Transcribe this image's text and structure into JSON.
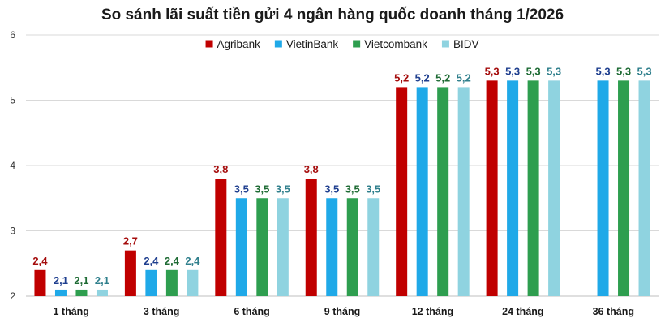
{
  "chart_data": {
    "type": "bar",
    "title": "So sánh lãi suất tiền gửi 4 ngân hàng quốc doanh tháng 1/2026",
    "categories": [
      "1 tháng",
      "3 tháng",
      "6 tháng",
      "9 tháng",
      "12 tháng",
      "24 tháng",
      "36 tháng"
    ],
    "series": [
      {
        "name": "Agribank",
        "color": "#c00000",
        "label_color": "#a50d0d",
        "values": [
          2.4,
          2.7,
          3.8,
          3.8,
          5.2,
          5.3,
          null
        ],
        "labels": [
          "2,4",
          "2,7",
          "3,8",
          "3,8",
          "5,2",
          "5,3",
          ""
        ]
      },
      {
        "name": "VietinBank",
        "color": "#1fa9e8",
        "label_color": "#1f3f8f",
        "values": [
          2.1,
          2.4,
          3.5,
          3.5,
          5.2,
          5.3,
          5.3
        ],
        "labels": [
          "2,1",
          "2,4",
          "3,5",
          "3,5",
          "5,2",
          "5,3",
          "5,3"
        ]
      },
      {
        "name": "Vietcombank",
        "color": "#2e9e4f",
        "label_color": "#1e6b34",
        "values": [
          2.1,
          2.4,
          3.5,
          3.5,
          5.2,
          5.3,
          5.3
        ],
        "labels": [
          "2,1",
          "2,4",
          "3,5",
          "3,5",
          "5,2",
          "5,3",
          "5,3"
        ]
      },
      {
        "name": "BIDV",
        "color": "#8fd3e0",
        "label_color": "#2f7f8c",
        "values": [
          2.1,
          2.4,
          3.5,
          3.5,
          5.2,
          5.3,
          5.3
        ],
        "labels": [
          "2,1",
          "2,4",
          "3,5",
          "3,5",
          "5,2",
          "5,3",
          "5,3"
        ]
      }
    ],
    "yticks": [
      "2",
      "3",
      "4",
      "5",
      "6"
    ],
    "ylim": [
      2,
      6
    ],
    "grid": true,
    "legend_position": "top-center"
  }
}
